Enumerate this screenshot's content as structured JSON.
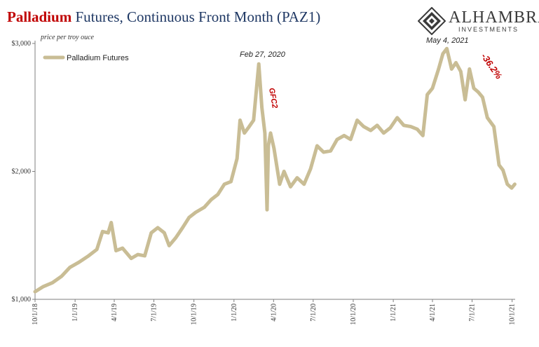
{
  "title": {
    "accent": "Palladium",
    "rest": " Futures, Continuous Front Month (PAZ1)"
  },
  "brand": {
    "name": "ALHAMBRA",
    "sub": "INVESTMENTS"
  },
  "colors": {
    "line": "#c9bd95",
    "accent": "#c00000",
    "title": "#1f3864"
  },
  "chart_data": {
    "type": "line",
    "title": "Palladium Futures, Continuous Front Month (PAZ1)",
    "ylabel": "price per troy ouce",
    "ylim": [
      1000,
      3000
    ],
    "y_ticks": [
      1000,
      2000,
      3000
    ],
    "y_tick_labels": [
      "$1,000",
      "$2,000",
      "$3,000"
    ],
    "x_ticks": [
      "2018-10-01",
      "2019-01-01",
      "2019-04-01",
      "2019-07-01",
      "2019-10-01",
      "2020-01-01",
      "2020-04-01",
      "2020-07-01",
      "2020-10-01",
      "2021-01-01",
      "2021-04-01",
      "2021-07-01",
      "2021-10-01"
    ],
    "x_tick_labels": [
      "10/1/18",
      "1/1/19",
      "4/1/19",
      "7/1/19",
      "10/1/19",
      "1/1/20",
      "4/1/20",
      "7/1/20",
      "10/1/20",
      "1/1/21",
      "4/1/21",
      "7/1/21",
      "10/1/21"
    ],
    "xlim": [
      "2018-10-01",
      "2021-10-08"
    ],
    "legend": {
      "placement": "top-left"
    },
    "grid": false,
    "series": [
      {
        "name": "Palladium Futures",
        "x": [
          "2018-10-01",
          "2018-10-20",
          "2018-11-10",
          "2018-12-01",
          "2018-12-20",
          "2019-01-10",
          "2019-02-01",
          "2019-02-20",
          "2019-03-05",
          "2019-03-18",
          "2019-03-25",
          "2019-04-05",
          "2019-04-20",
          "2019-05-10",
          "2019-05-25",
          "2019-06-10",
          "2019-06-25",
          "2019-07-10",
          "2019-07-25",
          "2019-08-05",
          "2019-08-20",
          "2019-09-05",
          "2019-09-20",
          "2019-10-05",
          "2019-10-25",
          "2019-11-10",
          "2019-11-25",
          "2019-12-10",
          "2019-12-25",
          "2020-01-08",
          "2020-01-15",
          "2020-01-25",
          "2020-02-05",
          "2020-02-15",
          "2020-02-27",
          "2020-03-05",
          "2020-03-12",
          "2020-03-17",
          "2020-03-20",
          "2020-03-25",
          "2020-04-02",
          "2020-04-15",
          "2020-04-25",
          "2020-05-10",
          "2020-05-25",
          "2020-06-10",
          "2020-06-25",
          "2020-07-10",
          "2020-07-25",
          "2020-08-10",
          "2020-08-25",
          "2020-09-10",
          "2020-09-25",
          "2020-10-10",
          "2020-10-25",
          "2020-11-10",
          "2020-11-25",
          "2020-12-10",
          "2020-12-25",
          "2021-01-10",
          "2021-01-25",
          "2021-02-10",
          "2021-02-25",
          "2021-03-10",
          "2021-03-20",
          "2021-04-01",
          "2021-04-15",
          "2021-04-25",
          "2021-05-04",
          "2021-05-15",
          "2021-05-25",
          "2021-06-05",
          "2021-06-15",
          "2021-06-25",
          "2021-07-05",
          "2021-07-15",
          "2021-07-25",
          "2021-08-05",
          "2021-08-20",
          "2021-09-01",
          "2021-09-10",
          "2021-09-20",
          "2021-09-30",
          "2021-10-07"
        ],
        "y": [
          1060,
          1100,
          1130,
          1180,
          1250,
          1290,
          1340,
          1390,
          1530,
          1520,
          1600,
          1380,
          1400,
          1320,
          1350,
          1340,
          1520,
          1560,
          1520,
          1420,
          1480,
          1560,
          1640,
          1680,
          1720,
          1780,
          1820,
          1900,
          1920,
          2100,
          2400,
          2300,
          2350,
          2400,
          2840,
          2500,
          2300,
          1700,
          2200,
          2300,
          2180,
          1900,
          2000,
          1880,
          1950,
          1900,
          2020,
          2200,
          2150,
          2160,
          2250,
          2280,
          2250,
          2400,
          2350,
          2320,
          2360,
          2300,
          2340,
          2420,
          2360,
          2350,
          2330,
          2280,
          2600,
          2650,
          2800,
          2920,
          2960,
          2800,
          2850,
          2780,
          2560,
          2800,
          2650,
          2620,
          2580,
          2420,
          2350,
          2050,
          2010,
          1900,
          1870,
          1900
        ]
      }
    ],
    "annotations": [
      {
        "text": "Feb 27, 2020",
        "x": "2020-02-27",
        "y": 2840
      },
      {
        "text": "GFC2",
        "x": "2020-03-17",
        "y": 2580
      },
      {
        "text": "May 4, 2021",
        "x": "2021-05-04",
        "y": 2960
      },
      {
        "text": "-36.2%",
        "x": "2021-07-20",
        "y": 2830
      }
    ]
  }
}
